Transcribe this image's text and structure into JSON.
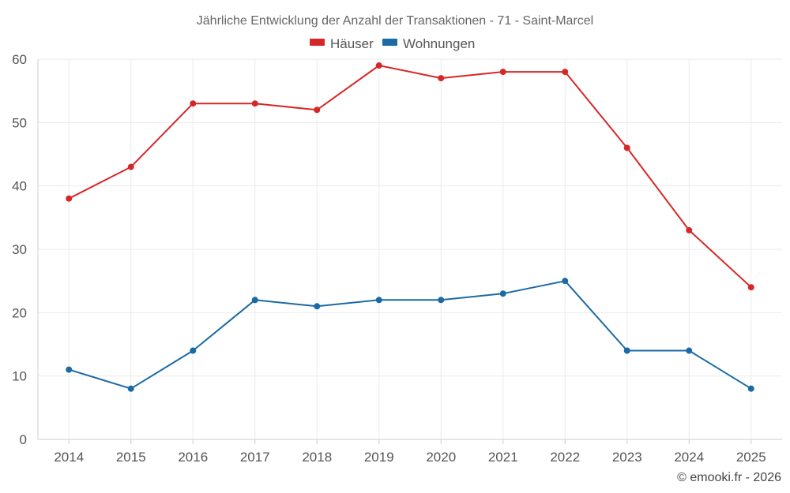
{
  "chart_data": {
    "type": "line",
    "title": "Jährliche Entwicklung der Anzahl der Transaktionen - 71 - Saint-Marcel",
    "categories": [
      "2014",
      "2015",
      "2016",
      "2017",
      "2018",
      "2019",
      "2020",
      "2021",
      "2022",
      "2023",
      "2024",
      "2025"
    ],
    "series": [
      {
        "name": "Häuser",
        "color": "#d62728",
        "values": [
          38,
          43,
          53,
          53,
          52,
          59,
          57,
          58,
          58,
          46,
          33,
          24
        ]
      },
      {
        "name": "Wohnungen",
        "color": "#1a6aa6",
        "values": [
          11,
          8,
          14,
          22,
          21,
          22,
          22,
          23,
          25,
          14,
          14,
          8
        ]
      }
    ],
    "ylim": [
      0,
      60
    ],
    "yticks": [
      0,
      10,
      20,
      30,
      40,
      50,
      60
    ],
    "grid": true,
    "legend_position": "top-center",
    "xlabel": "",
    "ylabel": ""
  },
  "credit": "© emooki.fr - 2026"
}
